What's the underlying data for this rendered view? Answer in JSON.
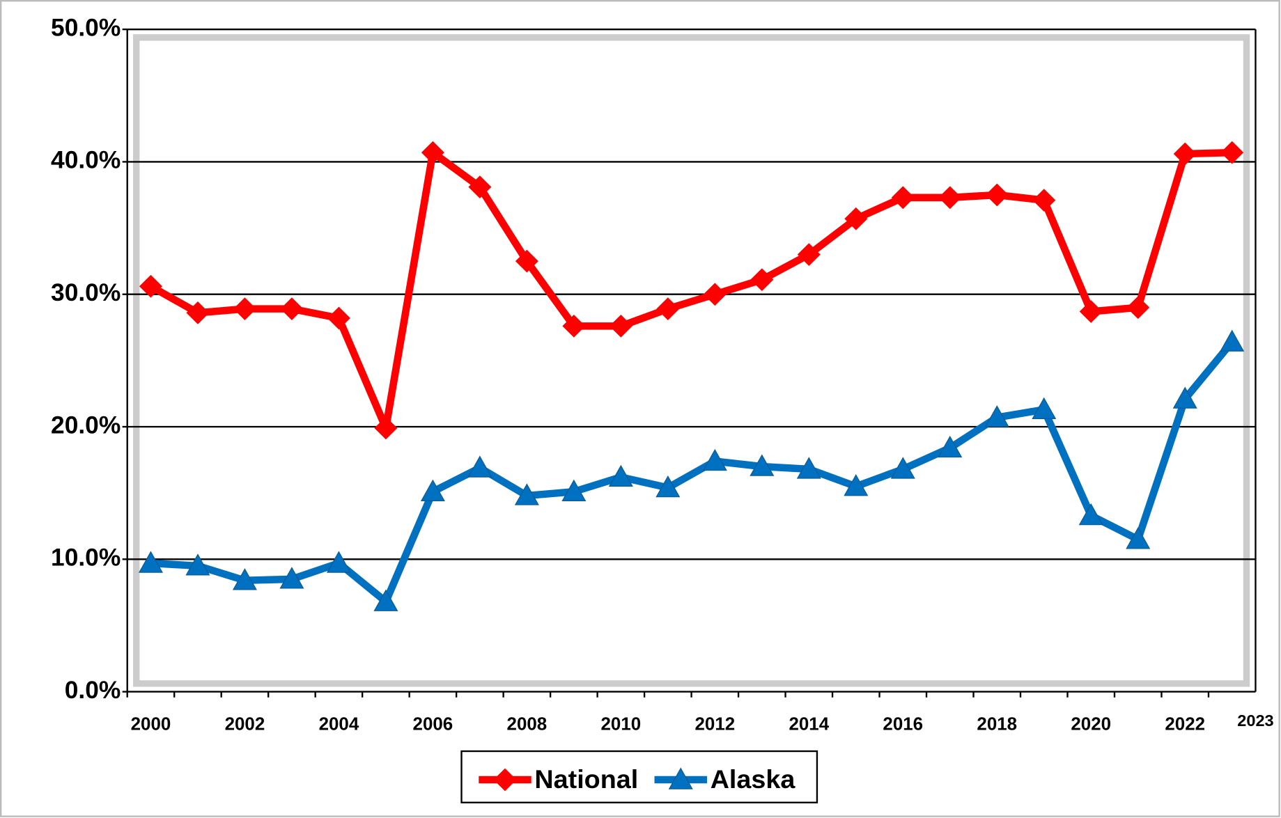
{
  "chart_data": {
    "type": "line",
    "categories": [
      "2000",
      null,
      "2002",
      null,
      "2004",
      null,
      "2006",
      null,
      "2008",
      null,
      "2010",
      null,
      "2012",
      null,
      "2014",
      null,
      "2016",
      null,
      "2018",
      null,
      "2020",
      null,
      "2022",
      "2023"
    ],
    "series": [
      {
        "name": "National",
        "color": "#ff0000",
        "marker": "diamond",
        "values": [
          30.6,
          28.6,
          28.9,
          28.9,
          28.2,
          19.9,
          40.7,
          38.1,
          32.5,
          27.6,
          27.6,
          28.9,
          30.0,
          31.1,
          33.0,
          35.7,
          37.3,
          37.3,
          37.5,
          37.1,
          28.7,
          29.0,
          40.6,
          40.7
        ]
      },
      {
        "name": "Alaska",
        "color": "#0070c0",
        "marker": "triangle",
        "values": [
          9.7,
          9.5,
          8.4,
          8.5,
          9.7,
          6.8,
          15.1,
          16.9,
          14.8,
          15.1,
          16.2,
          15.4,
          17.4,
          17.0,
          16.8,
          15.5,
          16.8,
          18.4,
          20.7,
          21.3,
          13.3,
          11.5,
          22.1,
          26.4
        ]
      }
    ],
    "ylim": [
      0,
      50
    ],
    "yticks": [
      {
        "value": 0,
        "label": "0.0%"
      },
      {
        "value": 10,
        "label": "10.0%"
      },
      {
        "value": 20,
        "label": "20.0%"
      },
      {
        "value": 30,
        "label": "30.0%"
      },
      {
        "value": 40,
        "label": "40.0%"
      },
      {
        "value": 50,
        "label": "50.0%"
      }
    ],
    "grid": true,
    "legend": "bottom"
  }
}
